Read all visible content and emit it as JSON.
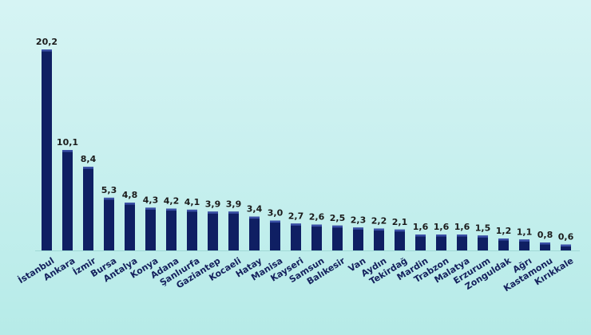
{
  "chart_data": {
    "type": "bar",
    "title": "",
    "xlabel": "",
    "ylabel": "",
    "ylim": [
      0,
      21
    ],
    "grid": false,
    "legend": "none",
    "bar_color": "#0f1f63",
    "bar_highlight": "#3a4fa6",
    "categories": [
      "İstanbul",
      "Ankara",
      "İzmir",
      "Bursa",
      "Antalya",
      "Konya",
      "Adana",
      "Şanlıurfa",
      "Gaziantep",
      "Kocaeli",
      "Hatay",
      "Manisa",
      "Kayseri",
      "Samsun",
      "Balıkesir",
      "Van",
      "Aydın",
      "Tekirdağ",
      "Mardin",
      "Trabzon",
      "Malatya",
      "Erzurum",
      "Zonguldak",
      "Ağrı",
      "Kastamonu",
      "Kırıkkale"
    ],
    "values": [
      20.2,
      10.1,
      8.4,
      5.3,
      4.8,
      4.3,
      4.2,
      4.1,
      3.9,
      3.9,
      3.4,
      3.0,
      2.7,
      2.6,
      2.5,
      2.3,
      2.2,
      2.1,
      1.6,
      1.6,
      1.6,
      1.5,
      1.2,
      1.1,
      0.8,
      0.6
    ],
    "value_labels": [
      "20,2",
      "10,1",
      "8,4",
      "5,3",
      "4,8",
      "4,3",
      "4,2",
      "4,1",
      "3,9",
      "3,9",
      "3,4",
      "3,0",
      "2,7",
      "2,6",
      "2,5",
      "2,3",
      "2,2",
      "2,1",
      "1,6",
      "1,6",
      "1,6",
      "1,5",
      "1,2",
      "1,1",
      "0,8",
      "0,6"
    ]
  }
}
